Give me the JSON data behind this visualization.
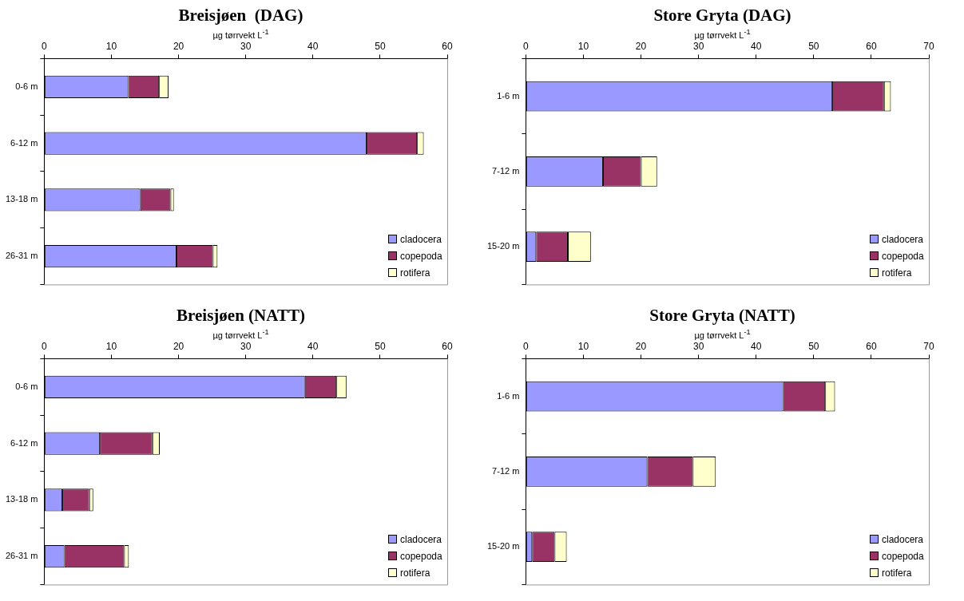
{
  "chart_data": [
    {
      "type": "bar",
      "orientation": "horizontal",
      "stacked": true,
      "title": "Breisjøen  (DAG)",
      "xlabel": "µg tørrvekt L$^{-1}$",
      "categories": [
        "0-6 m",
        "6-12 m",
        "13-18 m",
        "26-31 m"
      ],
      "xlim": [
        0,
        60
      ],
      "xticks": [
        0,
        10,
        20,
        30,
        40,
        50,
        60
      ],
      "grid": false,
      "legend": "bottom right",
      "series": [
        {
          "name": "cladocera",
          "color": "#9999ff",
          "values": [
            12.5,
            48,
            14.3,
            19.7
          ]
        },
        {
          "name": "copepoda",
          "color": "#993366",
          "values": [
            4.6,
            7.5,
            4.5,
            5.4
          ]
        },
        {
          "name": "rotifera",
          "color": "#ffffcc",
          "values": [
            1.4,
            1.0,
            0.5,
            0.7
          ]
        }
      ]
    },
    {
      "type": "bar",
      "orientation": "horizontal",
      "stacked": true,
      "title": "Store Gryta (DAG)",
      "xlabel": "µg tørrvekt L$^{-1}$",
      "categories": [
        "1-6 m",
        "7-12 m",
        "15-20 m"
      ],
      "xlim": [
        0,
        70
      ],
      "xticks": [
        0,
        10,
        20,
        30,
        40,
        50,
        60,
        70
      ],
      "grid": false,
      "legend": "bottom right",
      "series": [
        {
          "name": "cladocera",
          "color": "#9999ff",
          "values": [
            53.2,
            13.4,
            1.8
          ]
        },
        {
          "name": "copepoda",
          "color": "#993366",
          "values": [
            9.0,
            6.6,
            5.5
          ]
        },
        {
          "name": "rotifera",
          "color": "#ffffcc",
          "values": [
            1.2,
            2.8,
            4.0
          ]
        }
      ]
    },
    {
      "type": "bar",
      "orientation": "horizontal",
      "stacked": true,
      "title": "Breisjøen (NATT)",
      "xlabel": "µg tørrvekt L$^{-1}$",
      "categories": [
        "0-6 m",
        "6-12 m",
        "13-18 m",
        "26-31 m"
      ],
      "xlim": [
        0,
        60
      ],
      "xticks": [
        0,
        10,
        20,
        30,
        40,
        50,
        60
      ],
      "grid": false,
      "legend": "bottom right",
      "series": [
        {
          "name": "cladocera",
          "color": "#9999ff",
          "values": [
            38.8,
            8.3,
            2.7,
            3.0
          ]
        },
        {
          "name": "copepoda",
          "color": "#993366",
          "values": [
            4.7,
            7.8,
            4.0,
            8.9
          ]
        },
        {
          "name": "rotifera",
          "color": "#ffffcc",
          "values": [
            1.5,
            1.1,
            0.6,
            0.7
          ]
        }
      ]
    },
    {
      "type": "bar",
      "orientation": "horizontal",
      "stacked": true,
      "title": "Store Gryta (NATT)",
      "xlabel": "µg tørrvekt L$^{-1}$",
      "categories": [
        "1-6 m",
        "7-12 m",
        "15-20 m"
      ],
      "xlim": [
        0,
        70
      ],
      "xticks": [
        0,
        10,
        20,
        30,
        40,
        50,
        60,
        70
      ],
      "grid": false,
      "legend": "bottom right",
      "series": [
        {
          "name": "cladocera",
          "color": "#9999ff",
          "values": [
            44.7,
            21.1,
            1.1
          ]
        },
        {
          "name": "copepoda",
          "color": "#993366",
          "values": [
            7.3,
            7.9,
            3.9
          ]
        },
        {
          "name": "rotifera",
          "color": "#ffffcc",
          "values": [
            1.7,
            4.0,
            2.1
          ]
        }
      ]
    }
  ]
}
